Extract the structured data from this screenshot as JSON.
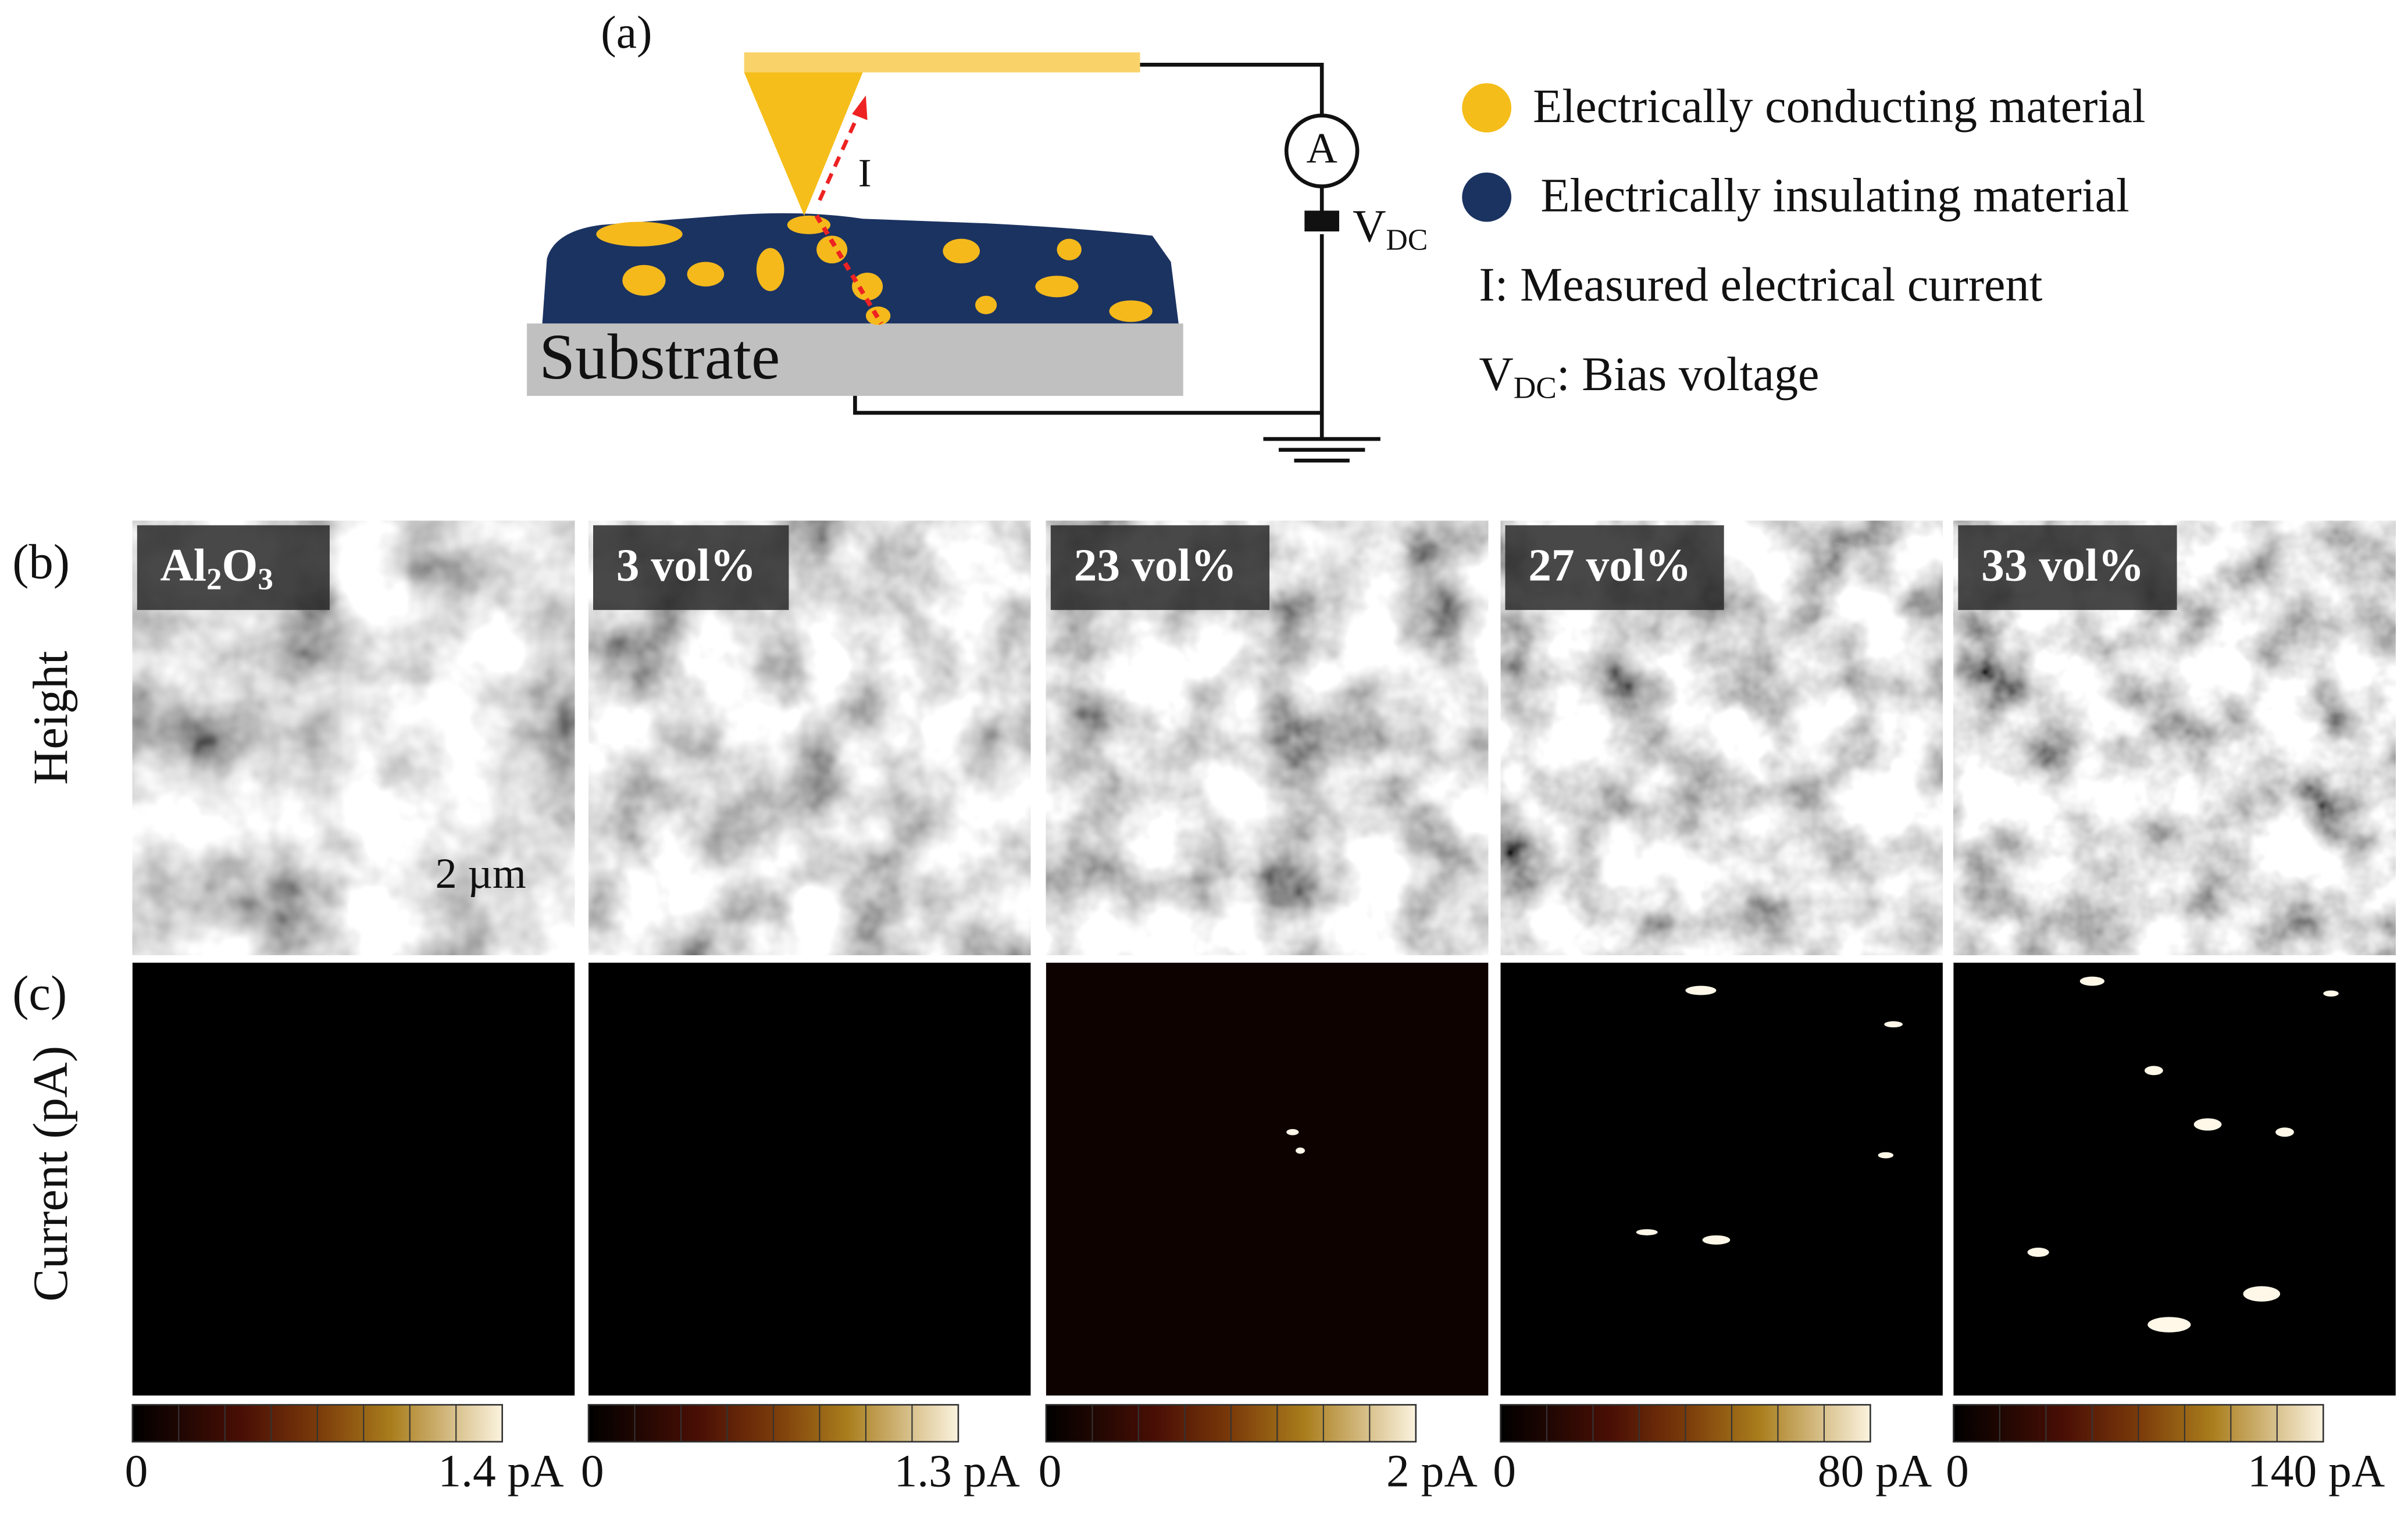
{
  "panel_a": {
    "label": "(a)",
    "substrate": "Substrate",
    "current_symbol": "I",
    "ammeter": "A",
    "voltage": {
      "main": "V",
      "sub": "DC"
    },
    "legend": [
      {
        "text": "Electrically conducting material"
      },
      {
        "text": "Electrically insulating material"
      },
      {
        "text": "I: Measured electrical current"
      },
      {
        "main": "V",
        "sub": "DC",
        "text": ": Bias voltage"
      }
    ]
  },
  "panel_b": {
    "label": "(b)",
    "row_label": "Height",
    "scale_bar": "2 µm",
    "samples": [
      {
        "parts": [
          "Al",
          "2",
          "O",
          "3"
        ]
      },
      {
        "parts": [
          "3 vol%"
        ]
      },
      {
        "parts": [
          "23 vol%"
        ]
      },
      {
        "parts": [
          "27 vol%"
        ]
      },
      {
        "parts": [
          "33 vol%"
        ]
      }
    ]
  },
  "panel_c": {
    "label": "(c)",
    "row_label": "Current (pA)",
    "colorbars": [
      {
        "min": "0",
        "max": "1.4 pA"
      },
      {
        "min": "0",
        "max": "1.3 pA"
      },
      {
        "min": "0",
        "max": "2 pA"
      },
      {
        "min": "0",
        "max": "80 pA"
      },
      {
        "min": "0",
        "max": "140 pA"
      }
    ]
  }
}
